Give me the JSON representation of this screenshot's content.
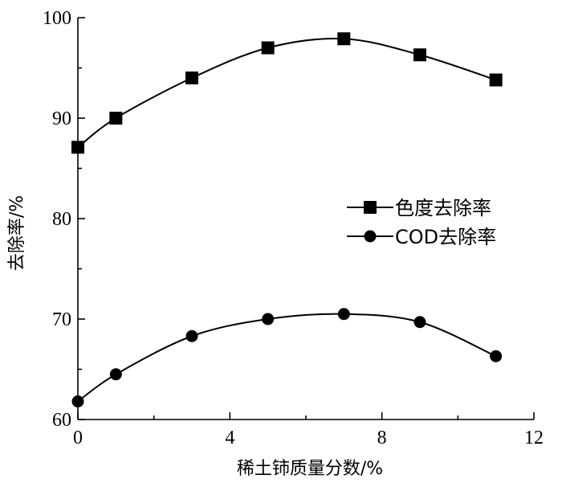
{
  "chart_data": {
    "type": "line",
    "xlabel": "稀土铈质量分数/%",
    "ylabel": "去除率/%",
    "xlim": [
      0,
      12
    ],
    "ylim": [
      60,
      100
    ],
    "x_ticks": [
      "0",
      "4",
      "8",
      "12"
    ],
    "y_ticks": [
      "60",
      "70",
      "80",
      "90",
      "100"
    ],
    "grid": false,
    "legend_position": "center-right",
    "x": [
      0,
      1,
      3,
      5,
      7,
      9,
      11
    ],
    "series": [
      {
        "name": "色度去除率",
        "marker": "square",
        "values": [
          87.1,
          90.0,
          94.0,
          97.0,
          97.9,
          96.3,
          93.8
        ]
      },
      {
        "name": "COD去除率",
        "marker": "circle",
        "values": [
          61.8,
          64.5,
          68.3,
          70.0,
          70.5,
          69.7,
          66.3
        ]
      }
    ]
  }
}
